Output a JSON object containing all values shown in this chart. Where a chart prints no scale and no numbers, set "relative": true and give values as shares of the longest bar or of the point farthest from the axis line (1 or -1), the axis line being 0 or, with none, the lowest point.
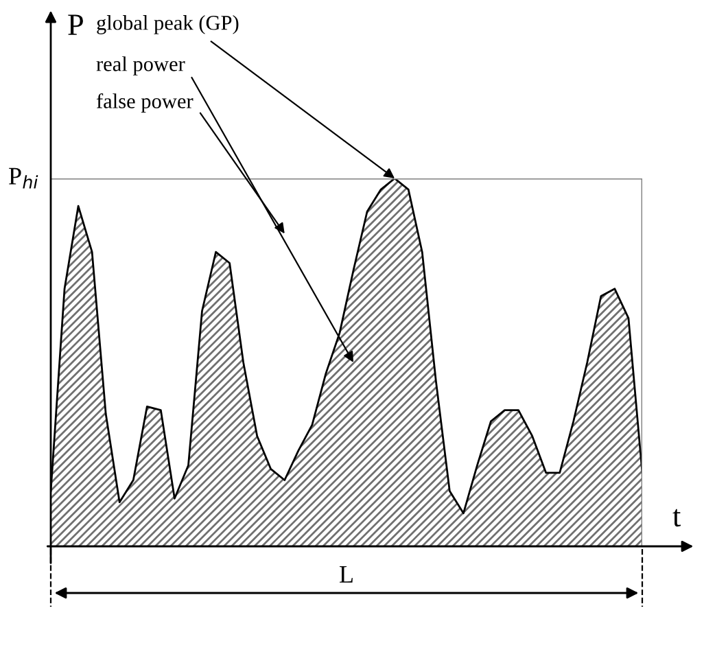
{
  "chart_data": {
    "type": "area",
    "relative": true,
    "xlabel": "t",
    "ylabel": "P",
    "color": "#707070",
    "categories": [
      null,
      null,
      null,
      null,
      null,
      null,
      null,
      null,
      null,
      null,
      null,
      null,
      null,
      null,
      null,
      null,
      null,
      null,
      null,
      null,
      null,
      null,
      null,
      null,
      null,
      null,
      null,
      null,
      null,
      null,
      null,
      null,
      null,
      null,
      null,
      null,
      null,
      null,
      null,
      null,
      null,
      null,
      null,
      null
    ],
    "values": [
      0.15,
      0.7,
      0.925,
      0.8,
      0.36,
      0.12,
      0.18,
      0.38,
      0.37,
      0.13,
      0.22,
      0.64,
      0.8,
      0.77,
      0.5,
      0.3,
      0.21,
      0.18,
      0.26,
      0.33,
      0.47,
      0.58,
      0.75,
      0.91,
      0.97,
      1.0,
      0.97,
      0.8,
      0.45,
      0.15,
      0.09,
      0.22,
      0.34,
      0.37,
      0.37,
      0.3,
      0.2,
      0.2,
      0.34,
      0.5,
      0.68,
      0.7,
      0.62,
      0.2
    ],
    "ref_lines": [
      {
        "axis": "y",
        "value": 1,
        "label": "P$_{hi}$",
        "color": "#808080"
      }
    ],
    "annotations": [
      "global peak (GP)",
      "real power",
      "false power",
      "L"
    ],
    "grid": false,
    "legend": false
  }
}
